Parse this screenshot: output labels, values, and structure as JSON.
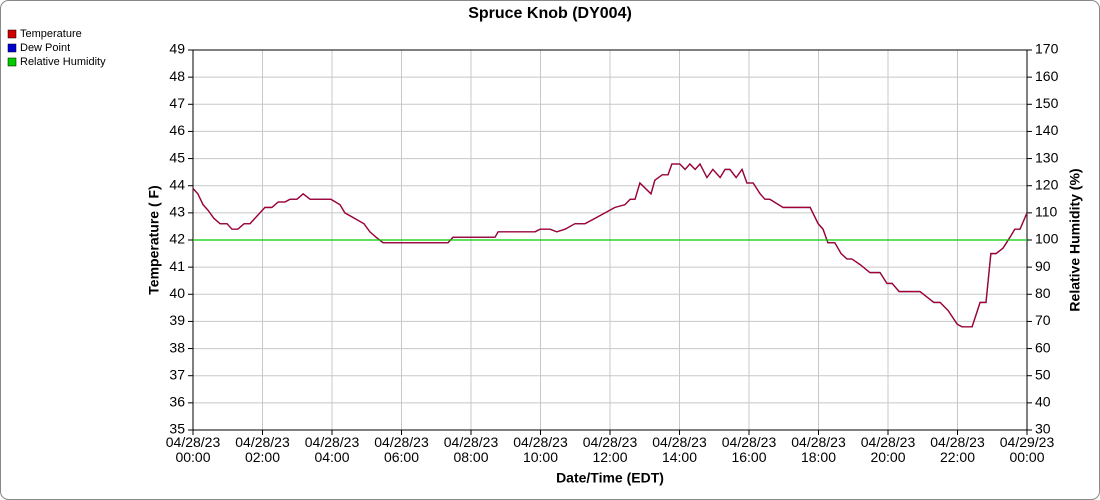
{
  "chart_data": {
    "type": "line",
    "title": "Spruce Knob (DY004)",
    "xlabel": "Date/Time (EDT)",
    "ylabel": "Temperature ( F)",
    "y2label": "Relative Humidity (%)",
    "x": [
      0,
      0.14,
      0.29,
      0.43,
      0.6,
      0.78,
      0.98,
      1.12,
      1.29,
      1.47,
      1.64,
      2.07,
      2.27,
      2.45,
      2.65,
      2.79,
      2.99,
      3.17,
      3.37,
      3.97,
      4.23,
      4.37,
      4.92,
      5.09,
      5.27,
      5.47,
      7.34,
      7.48,
      8.69,
      8.78,
      9.84,
      9.99,
      10.27,
      10.47,
      10.71,
      10.99,
      11.28,
      11.57,
      11.86,
      12.14,
      12.43,
      12.58,
      12.72,
      12.86,
      13.18,
      13.29,
      13.5,
      13.67,
      13.78,
      14.01,
      14.16,
      14.3,
      14.45,
      14.59,
      14.79,
      14.96,
      15.17,
      15.31,
      15.45,
      15.63,
      15.8,
      15.94,
      16.12,
      16.32,
      16.46,
      16.6,
      16.98,
      17.76,
      17.99,
      18.13,
      18.27,
      18.47,
      18.65,
      18.82,
      18.96,
      19.19,
      19.48,
      19.77,
      19.97,
      20.12,
      20.32,
      20.92,
      21.12,
      21.32,
      21.5,
      21.73,
      21.99,
      22.13,
      22.42,
      22.65,
      22.82,
      22.96,
      23.11,
      23.31,
      23.51,
      23.65,
      23.8,
      24
    ],
    "series": [
      {
        "name": "Temperature",
        "color": "#d00000",
        "values": [
          43.9,
          43.7,
          43.3,
          43.1,
          42.8,
          42.6,
          42.6,
          42.4,
          42.4,
          42.6,
          42.6,
          43.2,
          43.2,
          43.4,
          43.4,
          43.5,
          43.5,
          43.7,
          43.5,
          43.5,
          43.3,
          43.0,
          42.6,
          42.3,
          42.1,
          41.9,
          41.9,
          42.1,
          42.1,
          42.3,
          42.3,
          42.4,
          42.4,
          42.3,
          42.4,
          42.6,
          42.6,
          42.8,
          43.0,
          43.2,
          43.3,
          43.5,
          43.5,
          44.1,
          43.7,
          44.2,
          44.4,
          44.4,
          44.8,
          44.8,
          44.6,
          44.8,
          44.6,
          44.8,
          44.3,
          44.6,
          44.3,
          44.6,
          44.6,
          44.3,
          44.6,
          44.1,
          44.1,
          43.7,
          43.5,
          43.5,
          43.2,
          43.2,
          42.6,
          42.4,
          41.9,
          41.9,
          41.5,
          41.3,
          41.3,
          41.1,
          40.8,
          40.8,
          40.4,
          40.4,
          40.1,
          40.1,
          39.9,
          39.7,
          39.7,
          39.4,
          38.9,
          38.8,
          38.8,
          39.7,
          39.7,
          41.5,
          41.5,
          41.7,
          42.1,
          42.4,
          42.4,
          43.0
        ]
      },
      {
        "name": "Dew Point",
        "color": "#0000d0",
        "values": [
          43.9,
          43.7,
          43.3,
          43.1,
          42.8,
          42.6,
          42.6,
          42.4,
          42.4,
          42.6,
          42.6,
          43.2,
          43.2,
          43.4,
          43.4,
          43.5,
          43.5,
          43.7,
          43.5,
          43.5,
          43.3,
          43.0,
          42.6,
          42.3,
          42.1,
          41.9,
          41.9,
          42.1,
          42.1,
          42.3,
          42.3,
          42.4,
          42.4,
          42.3,
          42.4,
          42.6,
          42.6,
          42.8,
          43.0,
          43.2,
          43.3,
          43.5,
          43.5,
          44.1,
          43.7,
          44.2,
          44.4,
          44.4,
          44.8,
          44.8,
          44.6,
          44.8,
          44.6,
          44.8,
          44.3,
          44.6,
          44.3,
          44.6,
          44.6,
          44.3,
          44.6,
          44.1,
          44.1,
          43.7,
          43.5,
          43.5,
          43.2,
          43.2,
          42.6,
          42.4,
          41.9,
          41.9,
          41.5,
          41.3,
          41.3,
          41.1,
          40.8,
          40.8,
          40.4,
          40.4,
          40.1,
          40.1,
          39.9,
          39.7,
          39.7,
          39.4,
          38.9,
          38.8,
          38.8,
          39.7,
          39.7,
          41.5,
          41.5,
          41.7,
          42.1,
          42.4,
          42.4,
          43.0
        ]
      },
      {
        "name": "Relative Humidity",
        "color": "#00cc00",
        "axis": "y2",
        "x": [
          0,
          24
        ],
        "values": [
          100,
          100
        ]
      }
    ],
    "xlim": [
      0,
      24
    ],
    "xticks": [
      {
        "value": 0,
        "label": "04/28/23\n00:00"
      },
      {
        "value": 2,
        "label": "04/28/23\n02:00"
      },
      {
        "value": 4,
        "label": "04/28/23\n04:00"
      },
      {
        "value": 6,
        "label": "04/28/23\n06:00"
      },
      {
        "value": 8,
        "label": "04/28/23\n08:00"
      },
      {
        "value": 10,
        "label": "04/28/23\n10:00"
      },
      {
        "value": 12,
        "label": "04/28/23\n12:00"
      },
      {
        "value": 14,
        "label": "04/28/23\n14:00"
      },
      {
        "value": 16,
        "label": "04/28/23\n16:00"
      },
      {
        "value": 18,
        "label": "04/28/23\n18:00"
      },
      {
        "value": 20,
        "label": "04/28/23\n20:00"
      },
      {
        "value": 22,
        "label": "04/28/23\n22:00"
      },
      {
        "value": 24,
        "label": "04/29/23\n00:00"
      }
    ],
    "ylim": [
      35,
      49
    ],
    "yticks": [
      35,
      36,
      37,
      38,
      39,
      40,
      41,
      42,
      43,
      44,
      45,
      46,
      47,
      48,
      49
    ],
    "y2lim": [
      30,
      170
    ],
    "y2ticks": [
      30,
      40,
      50,
      60,
      70,
      80,
      90,
      100,
      110,
      120,
      130,
      140,
      150,
      160,
      170
    ],
    "grid": true,
    "legend": "top-left"
  }
}
